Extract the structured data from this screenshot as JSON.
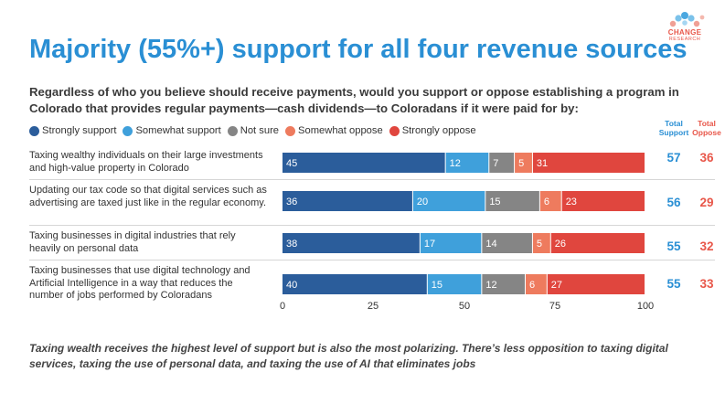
{
  "title": "Majority (55%+) support for all four revenue sources",
  "question": "Regardless of who you believe should receive payments, would you support or oppose establishing a program in Colorado that provides regular payments—cash dividends—to Coloradans if it were paid for by:",
  "logo": {
    "line1": "CHANGE",
    "line2": "RESEARCH"
  },
  "columns": {
    "support_line1": "Total",
    "support_line2": "Support",
    "oppose_line1": "Total",
    "oppose_line2": "Oppose"
  },
  "colors": {
    "strongly_support": "#2b5d9b",
    "somewhat_support": "#3fa0db",
    "not_sure": "#858585",
    "somewhat_oppose": "#ee7b5e",
    "strongly_oppose": "#e0463e",
    "support_total": "#2a8fd4",
    "oppose_total": "#e8574a"
  },
  "footnote": "Taxing wealth receives the highest level of support but is also the most polarizing. There’s less opposition to taxing digital services, taxing the use of personal data, and taxing the use of AI that eliminates jobs",
  "chart_data": {
    "type": "bar",
    "orientation": "horizontal",
    "stacked": true,
    "xlim": [
      0,
      100
    ],
    "xticks": [
      0,
      25,
      50,
      75,
      100
    ],
    "legend": [
      {
        "label": "Strongly support",
        "color": "#2b5d9b"
      },
      {
        "label": "Somewhat support",
        "color": "#3fa0db"
      },
      {
        "label": "Not sure",
        "color": "#858585"
      },
      {
        "label": "Somewhat oppose",
        "color": "#ee7b5e"
      },
      {
        "label": "Strongly oppose",
        "color": "#e0463e"
      }
    ],
    "categories": [
      "Taxing wealthy individuals on their large investments and high-value property in Colorado",
      "Updating our tax code so that digital services such as advertising are taxed just like in the regular economy.",
      "Taxing businesses in digital industries that rely heavily on personal data",
      "Taxing businesses that use digital technology and Artificial Intelligence in a way that reduces the number of jobs performed by Coloradans"
    ],
    "series": [
      {
        "name": "Strongly support",
        "values": [
          45,
          36,
          38,
          40
        ]
      },
      {
        "name": "Somewhat support",
        "values": [
          12,
          20,
          17,
          15
        ]
      },
      {
        "name": "Not sure",
        "values": [
          7,
          15,
          14,
          12
        ]
      },
      {
        "name": "Somewhat oppose",
        "values": [
          5,
          6,
          5,
          6
        ]
      },
      {
        "name": "Strongly oppose",
        "values": [
          31,
          23,
          26,
          27
        ]
      }
    ],
    "total_support": [
      57,
      56,
      55,
      55
    ],
    "total_oppose": [
      36,
      29,
      32,
      33
    ]
  }
}
